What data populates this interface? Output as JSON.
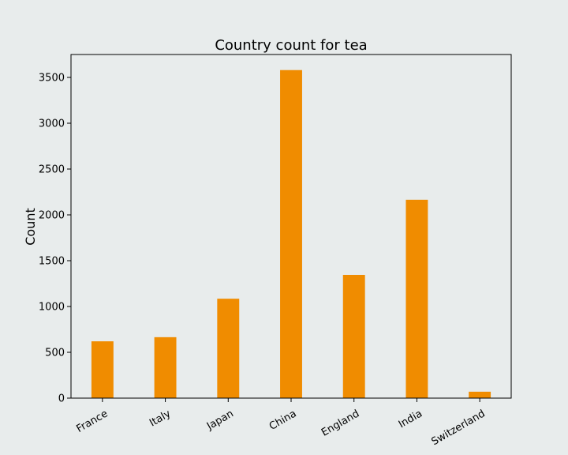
{
  "colors": {
    "background": "#e8ecec",
    "plot_background": "#e8ecec",
    "bar": "#f08c00",
    "axis": "#000000"
  },
  "chart_data": {
    "type": "bar",
    "title": "Country count for tea",
    "xlabel": "",
    "ylabel": "Count",
    "categories": [
      "France",
      "Italy",
      "Japan",
      "China",
      "England",
      "India",
      "Switzerland"
    ],
    "values": [
      620,
      665,
      1085,
      3580,
      1345,
      2165,
      70
    ],
    "ylim": [
      0,
      3750
    ],
    "yticks": [
      0,
      500,
      1000,
      1500,
      2000,
      2500,
      3000,
      3500
    ],
    "ytick_labels": [
      "0",
      "500",
      "1000",
      "1500",
      "2000",
      "2500",
      "3000",
      "3500"
    ],
    "x_tick_rotation_deg": 30,
    "grid": false,
    "legend": "none"
  }
}
